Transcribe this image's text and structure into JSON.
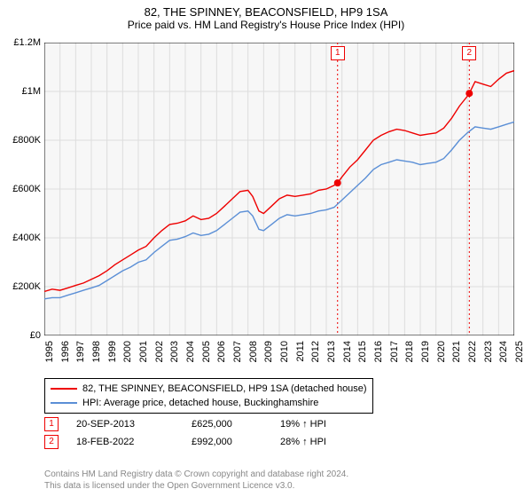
{
  "header": {
    "title": "82, THE SPINNEY, BEACONSFIELD, HP9 1SA",
    "subtitle": "Price paid vs. HM Land Registry's House Price Index (HPI)"
  },
  "chart": {
    "type": "line",
    "background_color": "#ffffff",
    "plot_bg_color": "#f7f7f7",
    "grid_color": "#dddddd",
    "axis_color": "#000000",
    "xlim": [
      1995,
      2025
    ],
    "ylim": [
      0,
      1200000
    ],
    "ytick_step": 200000,
    "yticks": [
      {
        "v": 0,
        "label": "£0"
      },
      {
        "v": 200000,
        "label": "£200K"
      },
      {
        "v": 400000,
        "label": "£400K"
      },
      {
        "v": 600000,
        "label": "£600K"
      },
      {
        "v": 800000,
        "label": "£800K"
      },
      {
        "v": 1000000,
        "label": "£1M"
      },
      {
        "v": 1200000,
        "label": "£1.2M"
      }
    ],
    "xticks": [
      1995,
      1996,
      1997,
      1998,
      1999,
      2000,
      2001,
      2002,
      2003,
      2004,
      2005,
      2006,
      2007,
      2008,
      2009,
      2010,
      2011,
      2012,
      2013,
      2014,
      2015,
      2016,
      2017,
      2018,
      2019,
      2020,
      2021,
      2022,
      2023,
      2024,
      2025
    ],
    "series": [
      {
        "name": "price_paid",
        "color": "#ee0000",
        "line_width": 1.4,
        "points": [
          [
            1995,
            180000
          ],
          [
            1995.5,
            190000
          ],
          [
            1996,
            185000
          ],
          [
            1996.5,
            195000
          ],
          [
            1997,
            205000
          ],
          [
            1997.5,
            215000
          ],
          [
            1998,
            230000
          ],
          [
            1998.5,
            245000
          ],
          [
            1999,
            265000
          ],
          [
            1999.5,
            290000
          ],
          [
            2000,
            310000
          ],
          [
            2000.5,
            330000
          ],
          [
            2001,
            350000
          ],
          [
            2001.5,
            365000
          ],
          [
            2002,
            400000
          ],
          [
            2002.5,
            430000
          ],
          [
            2003,
            455000
          ],
          [
            2003.5,
            460000
          ],
          [
            2004,
            470000
          ],
          [
            2004.5,
            490000
          ],
          [
            2005,
            475000
          ],
          [
            2005.5,
            480000
          ],
          [
            2006,
            500000
          ],
          [
            2006.5,
            530000
          ],
          [
            2007,
            560000
          ],
          [
            2007.5,
            590000
          ],
          [
            2008,
            595000
          ],
          [
            2008.3,
            570000
          ],
          [
            2008.7,
            510000
          ],
          [
            2009,
            500000
          ],
          [
            2009.5,
            530000
          ],
          [
            2010,
            560000
          ],
          [
            2010.5,
            575000
          ],
          [
            2011,
            570000
          ],
          [
            2011.5,
            575000
          ],
          [
            2012,
            580000
          ],
          [
            2012.5,
            595000
          ],
          [
            2013,
            600000
          ],
          [
            2013.5,
            615000
          ],
          [
            2013.72,
            625000
          ],
          [
            2014,
            650000
          ],
          [
            2014.5,
            690000
          ],
          [
            2015,
            720000
          ],
          [
            2015.5,
            760000
          ],
          [
            2016,
            800000
          ],
          [
            2016.5,
            820000
          ],
          [
            2017,
            835000
          ],
          [
            2017.5,
            845000
          ],
          [
            2018,
            840000
          ],
          [
            2018.5,
            830000
          ],
          [
            2019,
            820000
          ],
          [
            2019.5,
            825000
          ],
          [
            2020,
            830000
          ],
          [
            2020.5,
            850000
          ],
          [
            2021,
            890000
          ],
          [
            2021.5,
            940000
          ],
          [
            2022,
            980000
          ],
          [
            2022.13,
            992000
          ],
          [
            2022.5,
            1040000
          ],
          [
            2023,
            1030000
          ],
          [
            2023.5,
            1020000
          ],
          [
            2024,
            1050000
          ],
          [
            2024.5,
            1075000
          ],
          [
            2025,
            1085000
          ]
        ]
      },
      {
        "name": "hpi",
        "color": "#5b8fd6",
        "line_width": 1.4,
        "points": [
          [
            1995,
            150000
          ],
          [
            1995.5,
            155000
          ],
          [
            1996,
            155000
          ],
          [
            1996.5,
            165000
          ],
          [
            1997,
            175000
          ],
          [
            1997.5,
            185000
          ],
          [
            1998,
            195000
          ],
          [
            1998.5,
            205000
          ],
          [
            1999,
            225000
          ],
          [
            1999.5,
            245000
          ],
          [
            2000,
            265000
          ],
          [
            2000.5,
            280000
          ],
          [
            2001,
            300000
          ],
          [
            2001.5,
            310000
          ],
          [
            2002,
            340000
          ],
          [
            2002.5,
            365000
          ],
          [
            2003,
            390000
          ],
          [
            2003.5,
            395000
          ],
          [
            2004,
            405000
          ],
          [
            2004.5,
            420000
          ],
          [
            2005,
            410000
          ],
          [
            2005.5,
            415000
          ],
          [
            2006,
            430000
          ],
          [
            2006.5,
            455000
          ],
          [
            2007,
            480000
          ],
          [
            2007.5,
            505000
          ],
          [
            2008,
            510000
          ],
          [
            2008.3,
            490000
          ],
          [
            2008.7,
            435000
          ],
          [
            2009,
            430000
          ],
          [
            2009.5,
            455000
          ],
          [
            2010,
            480000
          ],
          [
            2010.5,
            495000
          ],
          [
            2011,
            490000
          ],
          [
            2011.5,
            495000
          ],
          [
            2012,
            500000
          ],
          [
            2012.5,
            510000
          ],
          [
            2013,
            515000
          ],
          [
            2013.5,
            525000
          ],
          [
            2014,
            555000
          ],
          [
            2014.5,
            585000
          ],
          [
            2015,
            615000
          ],
          [
            2015.5,
            645000
          ],
          [
            2016,
            680000
          ],
          [
            2016.5,
            700000
          ],
          [
            2017,
            710000
          ],
          [
            2017.5,
            720000
          ],
          [
            2018,
            715000
          ],
          [
            2018.5,
            710000
          ],
          [
            2019,
            700000
          ],
          [
            2019.5,
            705000
          ],
          [
            2020,
            710000
          ],
          [
            2020.5,
            725000
          ],
          [
            2021,
            760000
          ],
          [
            2021.5,
            800000
          ],
          [
            2022,
            830000
          ],
          [
            2022.5,
            855000
          ],
          [
            2023,
            850000
          ],
          [
            2023.5,
            845000
          ],
          [
            2024,
            855000
          ],
          [
            2024.5,
            865000
          ],
          [
            2025,
            875000
          ]
        ]
      }
    ],
    "sale_markers": [
      {
        "n": "1",
        "x": 2013.72,
        "y": 625000
      },
      {
        "n": "2",
        "x": 2022.13,
        "y": 992000
      }
    ],
    "marker_line_color": "#ee0000",
    "marker_dot_color": "#ee0000",
    "marker_dot_radius": 4
  },
  "legend": {
    "rows": [
      {
        "color": "#ee0000",
        "label": "82, THE SPINNEY, BEACONSFIELD, HP9 1SA (detached house)"
      },
      {
        "color": "#5b8fd6",
        "label": "HPI: Average price, detached house, Buckinghamshire"
      }
    ]
  },
  "sales": {
    "rows": [
      {
        "n": "1",
        "date": "20-SEP-2013",
        "price": "£625,000",
        "delta": "19% ↑ HPI"
      },
      {
        "n": "2",
        "date": "18-FEB-2022",
        "price": "£992,000",
        "delta": "28% ↑ HPI"
      }
    ]
  },
  "footer": {
    "line1": "Contains HM Land Registry data © Crown copyright and database right 2024.",
    "line2": "This data is licensed under the Open Government Licence v3.0."
  }
}
